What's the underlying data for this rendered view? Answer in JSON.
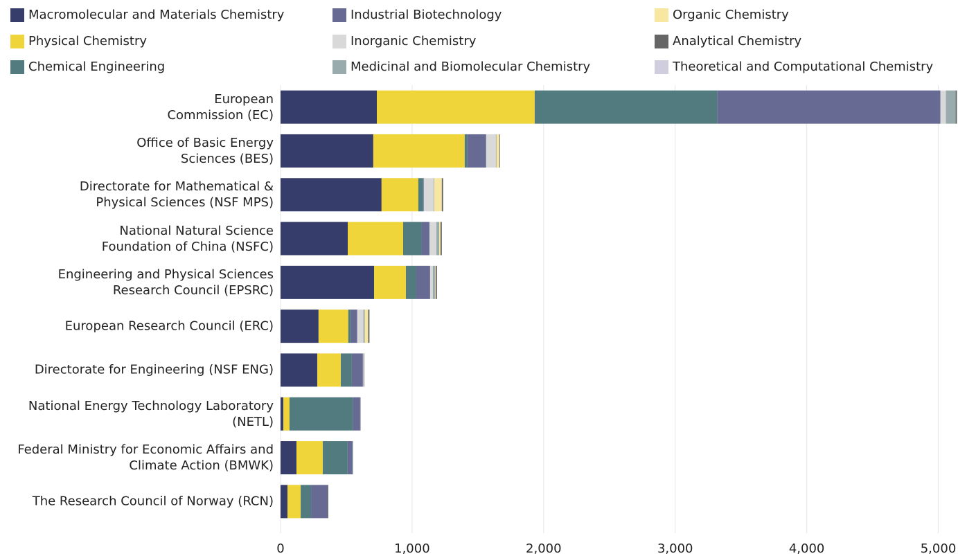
{
  "chart_data": {
    "type": "bar",
    "orientation": "horizontal",
    "stacked": true,
    "categories": [
      "European\nCommission (EC)",
      "Office of Basic Energy\nSciences (BES)",
      "Directorate for Mathematical &\nPhysical Sciences (NSF MPS)",
      "National Natural Science\nFoundation of China (NSFC)",
      "Engineering and Physical Sciences\nResearch Council (EPSRC)",
      "European Research Council (ERC)",
      "Directorate for Engineering (NSF ENG)",
      "National Energy Technology Laboratory\n(NETL)",
      "Federal Ministry for Economic Affairs and\nClimate Action (BMWK)",
      "The Research Council of Norway (RCN)"
    ],
    "series": [
      {
        "name": "Macromolecular and Materials Chemistry",
        "color": "#363d6a",
        "values": [
          732,
          705,
          768,
          511,
          711,
          289,
          279,
          21,
          121,
          53
        ]
      },
      {
        "name": "Physical Chemistry",
        "color": "#efd53a",
        "values": [
          1200,
          695,
          279,
          421,
          242,
          226,
          179,
          47,
          200,
          100
        ]
      },
      {
        "name": "Chemical Engineering",
        "color": "#527b80",
        "values": [
          1389,
          21,
          37,
          142,
          79,
          21,
          84,
          484,
          189,
          79
        ]
      },
      {
        "name": "Industrial Biotechnology",
        "color": "#676a92",
        "values": [
          1695,
          142,
          5,
          58,
          105,
          47,
          84,
          53,
          37,
          126
        ]
      },
      {
        "name": "Inorganic Chemistry",
        "color": "#d9d9d9",
        "values": [
          42,
          74,
          74,
          53,
          21,
          47,
          5,
          0,
          0,
          0
        ]
      },
      {
        "name": "Medicinal and Biomolecular Chemistry",
        "color": "#9aabae",
        "values": [
          74,
          5,
          5,
          21,
          16,
          10,
          0,
          0,
          5,
          0
        ]
      },
      {
        "name": "Organic Chemistry",
        "color": "#f8e7a0",
        "values": [
          0,
          21,
          58,
          10,
          5,
          26,
          0,
          0,
          0,
          0
        ]
      },
      {
        "name": "Analytical Chemistry",
        "color": "#666666",
        "values": [
          10,
          5,
          10,
          10,
          10,
          10,
          5,
          3,
          0,
          5
        ]
      },
      {
        "name": "Theoretical and Computational Chemistry",
        "color": "#d0cede",
        "values": [
          0,
          0,
          0,
          0,
          0,
          0,
          0,
          0,
          0,
          0
        ]
      }
    ],
    "xlim": [
      0,
      5150
    ],
    "xticks": [
      0,
      {
        "value": 1000,
        "label": "1,000"
      },
      {
        "value": 2000,
        "label": "2,000"
      },
      {
        "value": 3000,
        "label": "3,000"
      },
      {
        "value": 4000,
        "label": "4,000"
      },
      {
        "value": 5000,
        "label": "5,000"
      }
    ],
    "grid": true,
    "legend": "top"
  }
}
